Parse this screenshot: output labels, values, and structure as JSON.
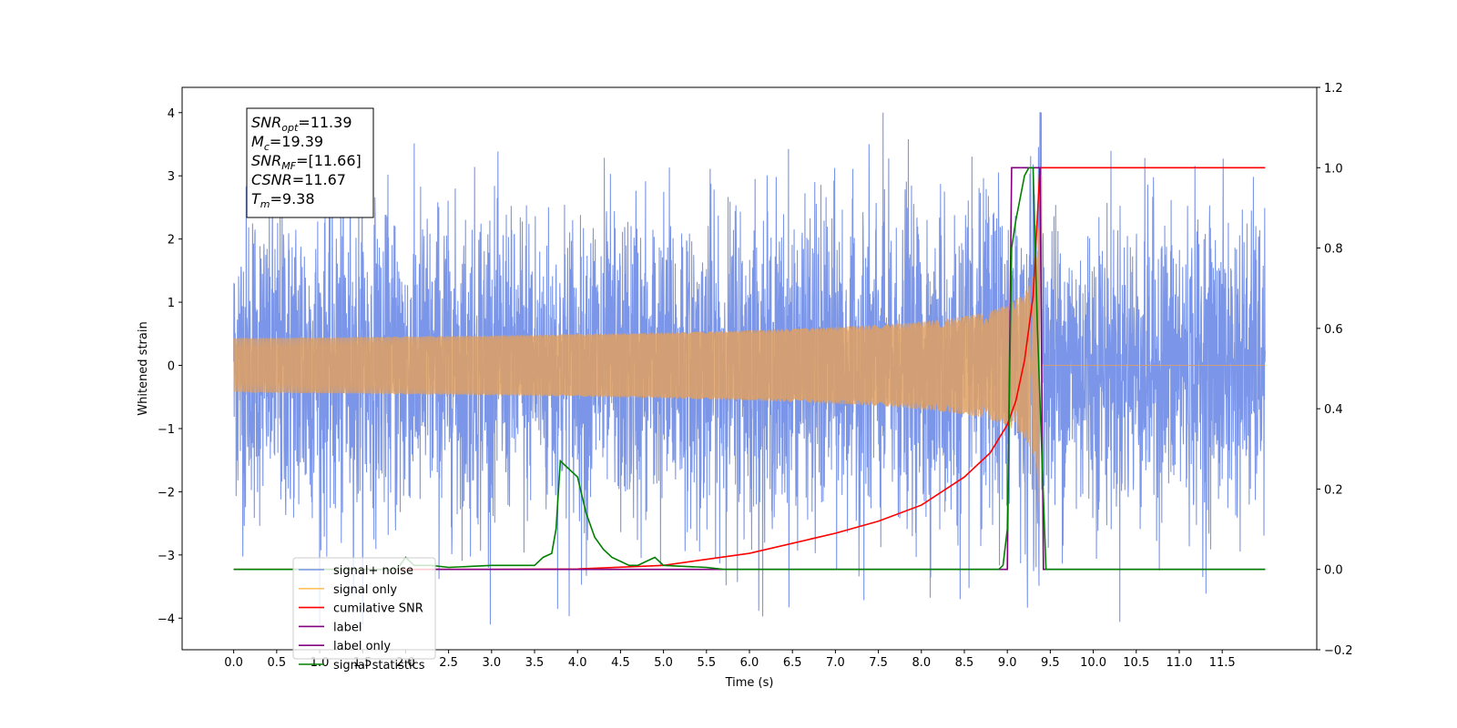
{
  "chart_data": {
    "type": "line",
    "xlabel": "Time (s)",
    "ylabel": "Whitened strain",
    "xlim": [
      -0.6,
      12.6
    ],
    "ylim": [
      -4.5,
      4.4
    ],
    "y2lim": [
      -0.2,
      1.2
    ],
    "x_ticks": [
      "0.0",
      "0.5",
      "1.0",
      "1.5",
      "2.0",
      "2.5",
      "3.0",
      "3.5",
      "4.0",
      "4.5",
      "5.0",
      "5.5",
      "6.0",
      "6.5",
      "7.0",
      "7.5",
      "8.0",
      "8.5",
      "9.0",
      "9.5",
      "10.0",
      "10.5",
      "11.0",
      "11.5"
    ],
    "y_ticks": [
      "4",
      "3",
      "2",
      "1",
      "0",
      "−1",
      "−2",
      "−3",
      "−4"
    ],
    "y2_ticks": [
      "1.2",
      "1.0",
      "0.8",
      "0.6",
      "0.4",
      "0.2",
      "0.0",
      "−0.2"
    ],
    "stats_box": {
      "lines": [
        {
          "sym": "SNR",
          "sub": "opt",
          "val": "=11.39"
        },
        {
          "sym": "M",
          "sub": "c",
          "val": "=19.39"
        },
        {
          "sym": "SNR",
          "sub": "MF",
          "val": "=[11.66]"
        },
        {
          "sym": "CSNR",
          "sub": "",
          "val": "=11.67"
        },
        {
          "sym": "T",
          "sub": "m",
          "val": "=9.38"
        }
      ]
    },
    "legend": {
      "placement": "lower-left",
      "entries": [
        {
          "label": "signal+ noise",
          "color": "#7b96e8"
        },
        {
          "label": "signal only",
          "color": "#ffc060"
        },
        {
          "label": "cumilative SNR",
          "color": "#ff0000"
        },
        {
          "label": "label",
          "color": "#800080"
        },
        {
          "label": "label only",
          "color": "#800080"
        },
        {
          "label": "signal statistics",
          "color": "#008000"
        }
      ]
    },
    "series": [
      {
        "name": "signal+ noise",
        "axis": "left",
        "color": "#7b96e8",
        "x_range": [
          0.0,
          12.0
        ],
        "noise_std": 1.2,
        "y_range": [
          -4.1,
          4.0
        ]
      },
      {
        "name": "signal only",
        "axis": "left",
        "color": "#e0a060",
        "chirp": {
          "t_merge": 9.38,
          "amp_at_merge": 3.0,
          "end": 9.4
        }
      },
      {
        "name": "cumilative SNR",
        "axis": "right",
        "color": "#ff0000",
        "x": [
          0.0,
          3.0,
          4.0,
          5.0,
          6.0,
          7.0,
          7.5,
          8.0,
          8.5,
          8.8,
          9.0,
          9.1,
          9.2,
          9.3,
          9.38,
          9.4,
          12.0
        ],
        "y": [
          0.0,
          0.0,
          0.001,
          0.01,
          0.04,
          0.09,
          0.12,
          0.16,
          0.23,
          0.29,
          0.36,
          0.42,
          0.52,
          0.68,
          1.0,
          1.0,
          1.0
        ]
      },
      {
        "name": "label",
        "axis": "right",
        "color": "#800080",
        "x": [
          2.3,
          9.0,
          9.05,
          9.38,
          9.42,
          12.0
        ],
        "y": [
          0.0,
          0.0,
          1.0,
          1.0,
          0.0,
          0.0
        ]
      },
      {
        "name": "signal statistics",
        "axis": "right",
        "color": "#008000",
        "x": [
          0.0,
          1.9,
          2.0,
          2.1,
          2.3,
          2.5,
          3.0,
          3.5,
          3.6,
          3.7,
          3.75,
          3.8,
          3.9,
          4.0,
          4.1,
          4.2,
          4.3,
          4.4,
          4.5,
          4.6,
          4.7,
          4.8,
          4.9,
          5.0,
          5.5,
          5.7,
          6.0,
          8.9,
          8.95,
          9.0,
          9.05,
          9.1,
          9.2,
          9.25,
          9.3,
          9.35,
          9.4,
          9.45,
          12.0
        ],
        "y": [
          0.0,
          0.0,
          0.03,
          0.01,
          0.01,
          0.005,
          0.01,
          0.01,
          0.03,
          0.04,
          0.1,
          0.27,
          0.25,
          0.23,
          0.14,
          0.08,
          0.05,
          0.03,
          0.02,
          0.01,
          0.01,
          0.02,
          0.03,
          0.01,
          0.005,
          0.0,
          0.0,
          0.0,
          0.01,
          0.1,
          0.8,
          0.87,
          0.98,
          1.0,
          1.0,
          0.6,
          0.3,
          0.0,
          0.0
        ]
      }
    ]
  }
}
